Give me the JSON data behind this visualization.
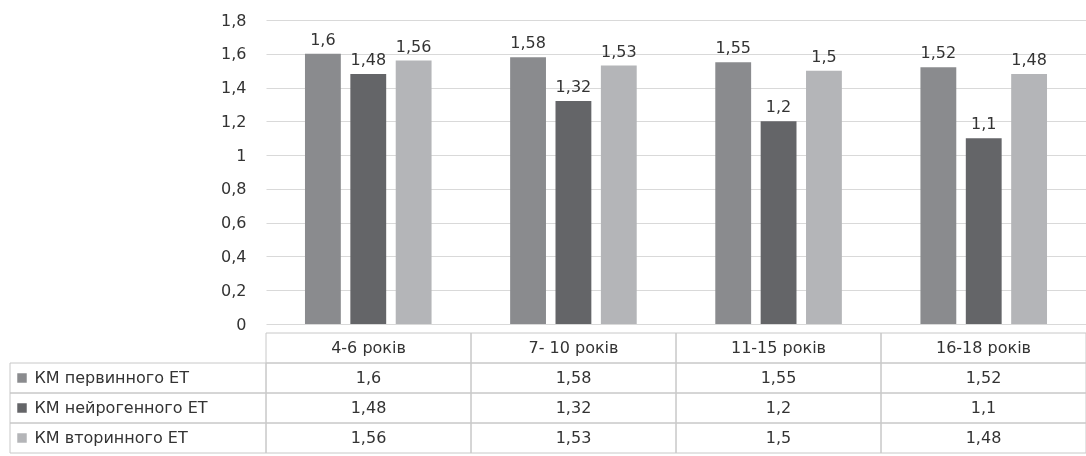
{
  "chart_data": {
    "type": "bar",
    "categories": [
      "4-6 років",
      "7- 10 років",
      "11-15 років",
      "16-18 років"
    ],
    "series": [
      {
        "name": "КМ первинного ЕТ",
        "color": "#8a8b8e",
        "values": [
          1.6,
          1.58,
          1.55,
          1.52
        ],
        "value_labels": [
          "1,6",
          "1,58",
          "1,55",
          "1,52"
        ]
      },
      {
        "name": "КМ нейрогенного ЕТ",
        "color": "#646568",
        "values": [
          1.48,
          1.32,
          1.2,
          1.1
        ],
        "value_labels": [
          "1,48",
          "1,32",
          "1,2",
          "1,1"
        ]
      },
      {
        "name": "КМ вторинного ЕТ",
        "color": "#b4b5b8",
        "values": [
          1.56,
          1.53,
          1.5,
          1.48
        ],
        "value_labels": [
          "1,56",
          "1,53",
          "1,5",
          "1,48"
        ]
      }
    ],
    "ylim": [
      0,
      1.8
    ],
    "yticks": [
      0,
      {
        "value": 0.2,
        "label": "0,2"
      },
      {
        "value": 0.4,
        "label": "0,4"
      },
      {
        "value": 0.6,
        "label": "0,6"
      },
      {
        "value": 0.8,
        "label": "0,8"
      },
      1,
      {
        "value": 1.2,
        "label": "1,2"
      },
      {
        "value": 1.4,
        "label": "1,4"
      },
      {
        "value": 1.6,
        "label": "1,6"
      },
      {
        "value": 1.8,
        "label": "1,8"
      }
    ],
    "grid": "y",
    "legend": "bottom left"
  }
}
